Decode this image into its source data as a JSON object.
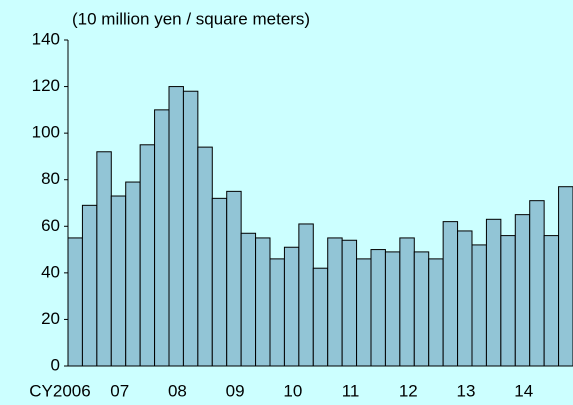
{
  "chart_data": {
    "type": "bar",
    "axis_label": "(10 million yen / square meters)",
    "categories": [
      "CY2006",
      null,
      null,
      null,
      "07",
      null,
      null,
      null,
      "08",
      null,
      null,
      null,
      "09",
      null,
      null,
      null,
      "10",
      null,
      null,
      null,
      "11",
      null,
      null,
      null,
      "12",
      null,
      null,
      null,
      "13",
      null,
      null,
      null,
      "14",
      null,
      null
    ],
    "values": [
      55,
      69,
      92,
      73,
      79,
      95,
      110,
      120,
      118,
      94,
      72,
      75,
      57,
      55,
      46,
      51,
      61,
      42,
      55,
      54,
      46,
      50,
      49,
      55,
      49,
      46,
      62,
      58,
      52,
      63,
      56,
      65,
      71,
      56,
      77
    ],
    "color": "#92c5d6",
    "ylim": [
      0,
      140
    ],
    "yticks": [
      0,
      20,
      40,
      60,
      80,
      100,
      120,
      140
    ]
  }
}
